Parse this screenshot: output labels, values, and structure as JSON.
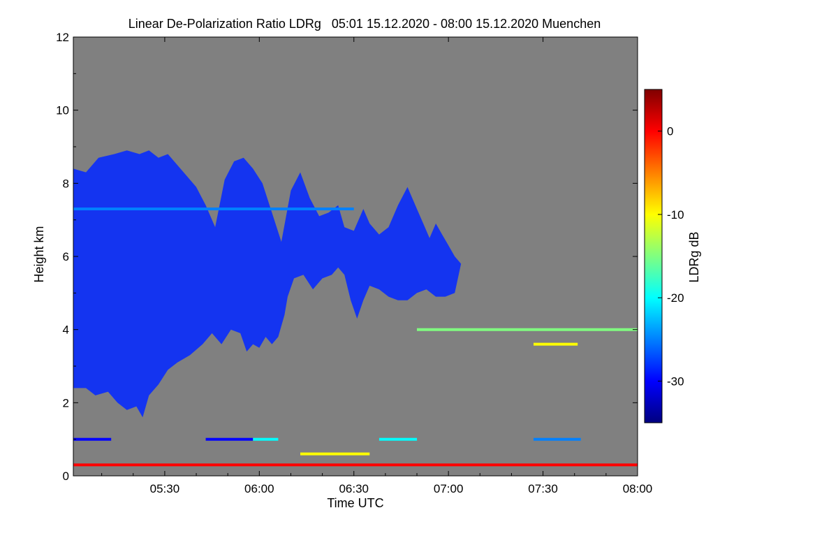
{
  "chart_data": {
    "type": "heatmap",
    "title": "Linear De-Polarization Ratio LDRg   05:01 15.12.2020 - 08:00 15.12.2020 Muenchen",
    "xlabel": "Time UTC",
    "ylabel": "Height km",
    "xlim_minutes": [
      301,
      480
    ],
    "ylim": [
      0,
      12
    ],
    "x_ticks": [
      {
        "value": 330,
        "label": "05:30"
      },
      {
        "value": 360,
        "label": "06:00"
      },
      {
        "value": 390,
        "label": "06:30"
      },
      {
        "value": 420,
        "label": "07:00"
      },
      {
        "value": 450,
        "label": "07:30"
      },
      {
        "value": 480,
        "label": "08:00"
      }
    ],
    "y_ticks": [
      0,
      2,
      4,
      6,
      8,
      10,
      12
    ],
    "colorbar": {
      "label": "LDRg dB",
      "range": [
        -35,
        5
      ],
      "ticks": [
        0,
        -10,
        -20,
        -30
      ],
      "colormap": [
        "#00007f",
        "#0000ff",
        "#0080ff",
        "#00ffff",
        "#80ff80",
        "#ffff00",
        "#ff8000",
        "#ff0000",
        "#800000"
      ]
    },
    "background_color": "#808080",
    "cloud_layer": {
      "value_db": -30,
      "color": "#1434f0",
      "top_km": [
        [
          301,
          8.4
        ],
        [
          305,
          8.3
        ],
        [
          309,
          8.7
        ],
        [
          314,
          8.8
        ],
        [
          318,
          8.9
        ],
        [
          322,
          8.8
        ],
        [
          325,
          8.9
        ],
        [
          328,
          8.7
        ],
        [
          331,
          8.8
        ],
        [
          334,
          8.5
        ],
        [
          337,
          8.2
        ],
        [
          340,
          7.9
        ],
        [
          343,
          7.4
        ],
        [
          346,
          6.8
        ],
        [
          349,
          8.1
        ],
        [
          352,
          8.6
        ],
        [
          355,
          8.7
        ],
        [
          358,
          8.4
        ],
        [
          361,
          8.0
        ],
        [
          364,
          7.2
        ],
        [
          367,
          6.4
        ],
        [
          370,
          7.8
        ],
        [
          373,
          8.3
        ],
        [
          376,
          7.6
        ],
        [
          379,
          7.1
        ],
        [
          382,
          7.2
        ],
        [
          385,
          7.4
        ],
        [
          387,
          6.8
        ],
        [
          390,
          6.7
        ],
        [
          393,
          7.3
        ],
        [
          395,
          6.9
        ],
        [
          398,
          6.6
        ],
        [
          401,
          6.8
        ],
        [
          404,
          7.4
        ],
        [
          407,
          7.9
        ],
        [
          410,
          7.3
        ],
        [
          412,
          6.9
        ],
        [
          414,
          6.5
        ],
        [
          416,
          6.9
        ],
        [
          418,
          6.6
        ],
        [
          420,
          6.3
        ],
        [
          422,
          6.0
        ],
        [
          424,
          5.8
        ]
      ],
      "bottom_km": [
        [
          424,
          5.8
        ],
        [
          422,
          5.0
        ],
        [
          419,
          4.9
        ],
        [
          416,
          4.9
        ],
        [
          413,
          5.1
        ],
        [
          410,
          5.0
        ],
        [
          407,
          4.8
        ],
        [
          404,
          4.8
        ],
        [
          401,
          4.9
        ],
        [
          398,
          5.1
        ],
        [
          395,
          5.2
        ],
        [
          393,
          4.8
        ],
        [
          391,
          4.3
        ],
        [
          389,
          4.8
        ],
        [
          387,
          5.5
        ],
        [
          385,
          5.7
        ],
        [
          383,
          5.5
        ],
        [
          380,
          5.4
        ],
        [
          377,
          5.1
        ],
        [
          374,
          5.5
        ],
        [
          371,
          5.4
        ],
        [
          369,
          4.9
        ],
        [
          368,
          4.4
        ],
        [
          366,
          3.8
        ],
        [
          364,
          3.6
        ],
        [
          362,
          3.8
        ],
        [
          360,
          3.5
        ],
        [
          358,
          3.6
        ],
        [
          356,
          3.4
        ],
        [
          354,
          3.9
        ],
        [
          351,
          4.0
        ],
        [
          348,
          3.6
        ],
        [
          345,
          3.9
        ],
        [
          342,
          3.6
        ],
        [
          338,
          3.3
        ],
        [
          334,
          3.1
        ],
        [
          331,
          2.9
        ],
        [
          328,
          2.5
        ],
        [
          325,
          2.2
        ],
        [
          323,
          1.6
        ],
        [
          321,
          1.9
        ],
        [
          318,
          1.8
        ],
        [
          315,
          2.0
        ],
        [
          312,
          2.3
        ],
        [
          308,
          2.2
        ],
        [
          305,
          2.4
        ],
        [
          301,
          2.4
        ]
      ]
    },
    "thin_layers": [
      {
        "height_km": 7.3,
        "t_start": 301,
        "t_end": 390,
        "value_db": -25
      },
      {
        "height_km": 0.3,
        "t_start": 301,
        "t_end": 480,
        "value_db": -2
      },
      {
        "height_km": 1.0,
        "t_start": 301,
        "t_end": 313,
        "value_db": -30
      },
      {
        "height_km": 1.0,
        "t_start": 343,
        "t_end": 358,
        "value_db": -28
      },
      {
        "height_km": 1.0,
        "t_start": 358,
        "t_end": 366,
        "value_db": -20
      },
      {
        "height_km": 1.0,
        "t_start": 398,
        "t_end": 410,
        "value_db": -21
      },
      {
        "height_km": 1.0,
        "t_start": 447,
        "t_end": 462,
        "value_db": -23
      },
      {
        "height_km": 0.6,
        "t_start": 373,
        "t_end": 395,
        "value_db": -8
      },
      {
        "height_km": 4.0,
        "t_start": 410,
        "t_end": 480,
        "value_db": -15
      },
      {
        "height_km": 3.6,
        "t_start": 447,
        "t_end": 461,
        "value_db": -12
      }
    ]
  }
}
